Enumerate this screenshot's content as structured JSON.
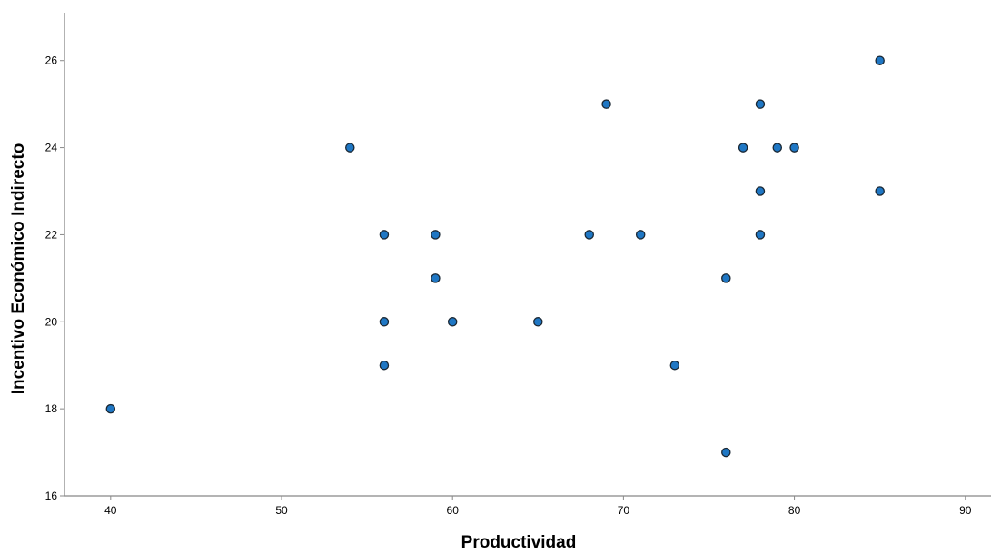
{
  "chart_data": {
    "type": "scatter",
    "title": "",
    "xlabel": "Productividad",
    "ylabel": "Incentivo Económico Indirecto",
    "xlim": [
      37.3,
      91.5
    ],
    "ylim": [
      16,
      27.1
    ],
    "x_ticks": [
      40,
      50,
      60,
      70,
      80,
      90
    ],
    "y_ticks": [
      16,
      18,
      20,
      22,
      24,
      26
    ],
    "grid": false,
    "marker_fill": "#1f77c4",
    "marker_edge": "#1a2733",
    "series": [
      {
        "points": [
          {
            "x": 40,
            "y": 18
          },
          {
            "x": 54,
            "y": 24
          },
          {
            "x": 56,
            "y": 22
          },
          {
            "x": 56,
            "y": 20
          },
          {
            "x": 56,
            "y": 19
          },
          {
            "x": 59,
            "y": 22
          },
          {
            "x": 59,
            "y": 21
          },
          {
            "x": 60,
            "y": 20
          },
          {
            "x": 65,
            "y": 20
          },
          {
            "x": 68,
            "y": 22
          },
          {
            "x": 69,
            "y": 25
          },
          {
            "x": 71,
            "y": 22
          },
          {
            "x": 73,
            "y": 19
          },
          {
            "x": 76,
            "y": 21
          },
          {
            "x": 76,
            "y": 17
          },
          {
            "x": 77,
            "y": 24
          },
          {
            "x": 78,
            "y": 25
          },
          {
            "x": 78,
            "y": 23
          },
          {
            "x": 78,
            "y": 22
          },
          {
            "x": 79,
            "y": 24
          },
          {
            "x": 80,
            "y": 24
          },
          {
            "x": 85,
            "y": 26
          },
          {
            "x": 85,
            "y": 23
          }
        ]
      }
    ]
  }
}
